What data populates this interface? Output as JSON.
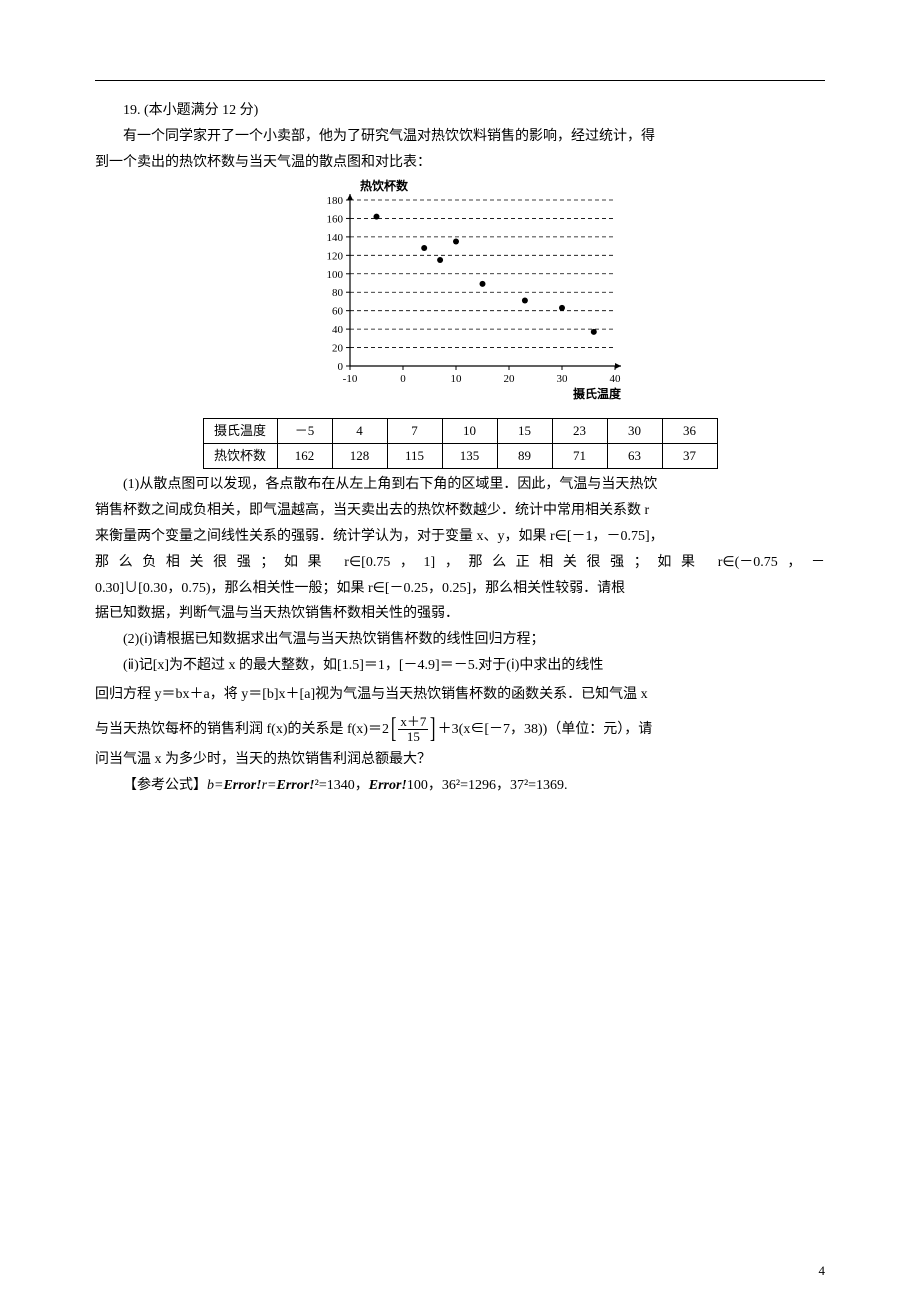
{
  "q_num": "19",
  "q_score": "(本小题满分 12 分)",
  "p1a": "有一个同学家开了一个小卖部，他为了研究气温对热饮饮料销售的影响，经过统计，得",
  "p1b": "到一个卖出的热饮杯数与当天气温的散点图和对比表：",
  "chart": {
    "y_title": "热饮杯数",
    "x_title": "摄氏温度",
    "x_ticks": [
      "-10",
      "0",
      "10",
      "20",
      "30",
      "40"
    ],
    "y_ticks": [
      "0",
      "20",
      "40",
      "60",
      "80",
      "100",
      "120",
      "140",
      "160",
      "180"
    ],
    "points": [
      {
        "x": -5,
        "y": 162
      },
      {
        "x": 4,
        "y": 128
      },
      {
        "x": 7,
        "y": 115
      },
      {
        "x": 10,
        "y": 135
      },
      {
        "x": 15,
        "y": 89
      },
      {
        "x": 23,
        "y": 71
      },
      {
        "x": 30,
        "y": 63
      },
      {
        "x": 36,
        "y": 37
      }
    ],
    "axis_color": "#000000",
    "grid_color": "#000000",
    "point_color": "#000000",
    "bg_color": "#ffffff"
  },
  "table": {
    "header_row": "摄氏温度",
    "header_row2": "热饮杯数",
    "row1": [
      "－5",
      "4",
      "7",
      "10",
      "15",
      "23",
      "30",
      "36"
    ],
    "row2": [
      "162",
      "128",
      "115",
      "135",
      "89",
      "71",
      "63",
      "37"
    ]
  },
  "p2_lines": [
    "(1)从散点图可以发现，各点散布在从左上角到右下角的区域里．因此，气温与当天热饮",
    "销售杯数之间成负相关，即气温越高，当天卖出去的热饮杯数越少．统计中常用相关系数 r",
    "来衡量两个变量之间线性关系的强弱．统计学认为，对于变量 x、y，如果 r∈[－1，－0.75]，",
    "那么负相关很强；如果 r∈[0.75，1]，那么正相关很强；如果 r∈(－0.75，－",
    "0.30]∪[0.30，0.75)，那么相关性一般；如果 r∈[－0.25，0.25]，那么相关性较弱．请根",
    "据已知数据，判断气温与当天热饮销售杯数相关性的强弱．"
  ],
  "p3": "(2)(ⅰ)请根据已知数据求出气温与当天热饮销售杯数的线性回归方程；",
  "p4a": "(ⅱ)记[x]为不超过 x 的最大整数，如[1.5]＝1，[－4.9]＝－5.对于(ⅰ)中求出的线性",
  "p4b_a": "回归方程 ",
  "p4b_b": "，将 y＝[",
  "p4b_c": "]x＋[",
  "p4b_d": "]视为气温与当天热饮销售杯数的函数关系．已知气温 x",
  "yhat": "y＝bx＋a",
  "bhat": "b",
  "ahat": "a",
  "p5a": "与当天热饮每杯的销售利润 f(x)的关系是 f(x)＝2",
  "frac_num": "x＋7",
  "frac_den": "15",
  "p5b": "＋3(x∈[－7，38))（单位：元），请",
  "p5c": "问当气温 x 为多少时，当天的热饮销售利润总额最大？",
  "p6a": "【参考公式】",
  "p6b_1": "b=",
  "p6b_2": "r=",
  "p6b_3": "²=1340，",
  "p6b_4": "100，36²=1296，37²=1369.",
  "err": "Error!",
  "page_number": "4"
}
